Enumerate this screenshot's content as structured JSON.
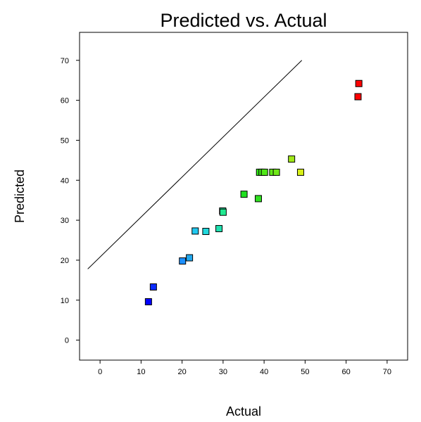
{
  "chart_data": {
    "type": "scatter",
    "title": "Predicted vs. Actual",
    "xlabel": "Actual",
    "ylabel": "Predicted",
    "xlim": [
      -5,
      75
    ],
    "ylim": [
      -5,
      77
    ],
    "xticks": [
      0,
      10,
      20,
      30,
      40,
      50,
      60,
      70
    ],
    "yticks": [
      0,
      10,
      20,
      30,
      40,
      50,
      60,
      70
    ],
    "reference_line": {
      "from": [
        -3,
        17.8
      ],
      "to": [
        49.2,
        70
      ]
    },
    "grid": false,
    "legend": "none",
    "points": [
      {
        "x": 11.8,
        "y": 9.6,
        "color": "#0000ff"
      },
      {
        "x": 13.0,
        "y": 13.3,
        "color": "#0a2cff"
      },
      {
        "x": 20.1,
        "y": 19.8,
        "color": "#1e90ff"
      },
      {
        "x": 21.8,
        "y": 20.6,
        "color": "#22a8ee"
      },
      {
        "x": 23.2,
        "y": 27.3,
        "color": "#20c8f0"
      },
      {
        "x": 25.8,
        "y": 27.2,
        "color": "#20d8dc"
      },
      {
        "x": 29.0,
        "y": 27.9,
        "color": "#20e0b0"
      },
      {
        "x": 29.9,
        "y": 32.3,
        "color": "#20e8a0"
      },
      {
        "x": 30.0,
        "y": 32.0,
        "color": "#20e890"
      },
      {
        "x": 35.1,
        "y": 36.5,
        "color": "#20e020"
      },
      {
        "x": 38.6,
        "y": 35.4,
        "color": "#30e020"
      },
      {
        "x": 38.9,
        "y": 42.0,
        "color": "#30e818"
      },
      {
        "x": 39.5,
        "y": 42.0,
        "color": "#40e818"
      },
      {
        "x": 40.1,
        "y": 42.0,
        "color": "#50e818"
      },
      {
        "x": 42.1,
        "y": 42.0,
        "color": "#60e818"
      },
      {
        "x": 43.0,
        "y": 42.0,
        "color": "#70e818"
      },
      {
        "x": 46.7,
        "y": 45.3,
        "color": "#a0e818"
      },
      {
        "x": 48.9,
        "y": 42.0,
        "color": "#d8f018"
      },
      {
        "x": 62.9,
        "y": 60.9,
        "color": "#ff0000"
      },
      {
        "x": 63.1,
        "y": 64.2,
        "color": "#ff0000"
      }
    ]
  }
}
